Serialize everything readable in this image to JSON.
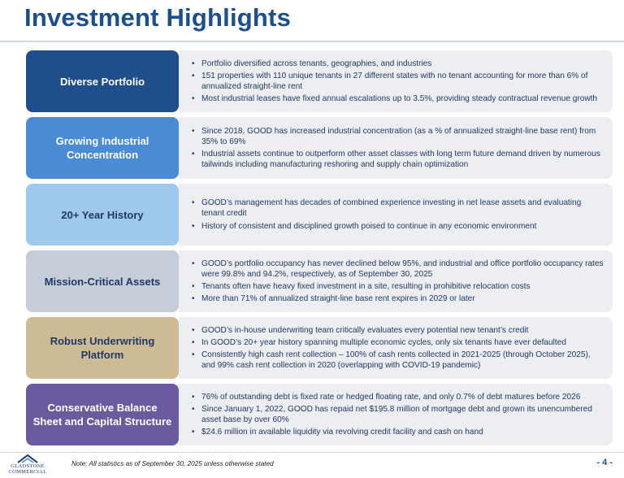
{
  "title": "Investment Highlights",
  "sections": [
    {
      "label": "Diverse Portfolio",
      "color": "#1f4e8c",
      "text_color": "#ffffff",
      "bullets": [
        "Portfolio diversified across tenants, geographies, and industries",
        "151 properties with 110 unique tenants in 27 different states with no tenant accounting for more than 6% of annualized straight-line rent",
        "Most industrial leases have fixed annual escalations up to 3.5%, providing steady contractual revenue growth"
      ]
    },
    {
      "label": "Growing Industrial Concentration",
      "color": "#4a8bd6",
      "text_color": "#ffffff",
      "bullets": [
        "Since 2018, GOOD has increased industrial concentration (as a % of annualized straight-line base rent) from 35% to 69%",
        "Industrial assets continue to outperform other asset classes with long term future demand driven by numerous tailwinds including manufacturing reshoring and supply chain optimization"
      ]
    },
    {
      "label": "20+ Year History",
      "color": "#9ec8ec",
      "text_color": "#1f3864",
      "bullets": [
        "GOOD’s management has decades of combined experience investing in net lease assets and evaluating tenant credit",
        "History of consistent and disciplined growth poised to continue in any economic environment"
      ]
    },
    {
      "label": "Mission-Critical Assets",
      "color": "#c5cdd8",
      "text_color": "#1f3864",
      "bullets": [
        "GOOD’s portfolio occupancy has never declined below 95%, and industrial and office portfolio occupancy rates were 99.8% and 94.2%, respectively, as of September 30, 2025",
        "Tenants often have heavy fixed investment in a site, resulting in prohibitive relocation costs",
        "More than 71% of annualized straight-line base rent expires in 2029 or later"
      ]
    },
    {
      "label": "Robust Underwriting Platform",
      "color": "#cdbb95",
      "text_color": "#1f3864",
      "bullets": [
        "GOOD’s in-house underwriting team critically evaluates every potential new tenant’s credit",
        "In GOOD’s 20+ year history spanning multiple economic cycles, only six tenants have ever defaulted",
        "Consistently high cash rent collection – 100% of cash rents collected in 2021-2025 (through October 2025), and 99% cash rent collection in 2020 (overlapping with COVID-19 pandemic)"
      ]
    },
    {
      "label": "Conservative Balance Sheet and Capital Structure",
      "color": "#6b5a9e",
      "text_color": "#ffffff",
      "bullets": [
        "76% of outstanding debt is fixed rate or hedged floating rate, and only 0.7% of debt matures before 2026",
        "Since January 1, 2022, GOOD has repaid net $195.8 million of mortgage debt and grown its unencumbered asset base by over 60%",
        "$24.6 million in available liquidity via revolving credit facility and cash on hand"
      ]
    }
  ],
  "footer": {
    "logo_line1": "GLADSTONE",
    "logo_line2": "COMMERCIAL",
    "note": "Note: All statistics as of September 30, 2025 unless otherwise stated",
    "page": "- 4 -"
  }
}
